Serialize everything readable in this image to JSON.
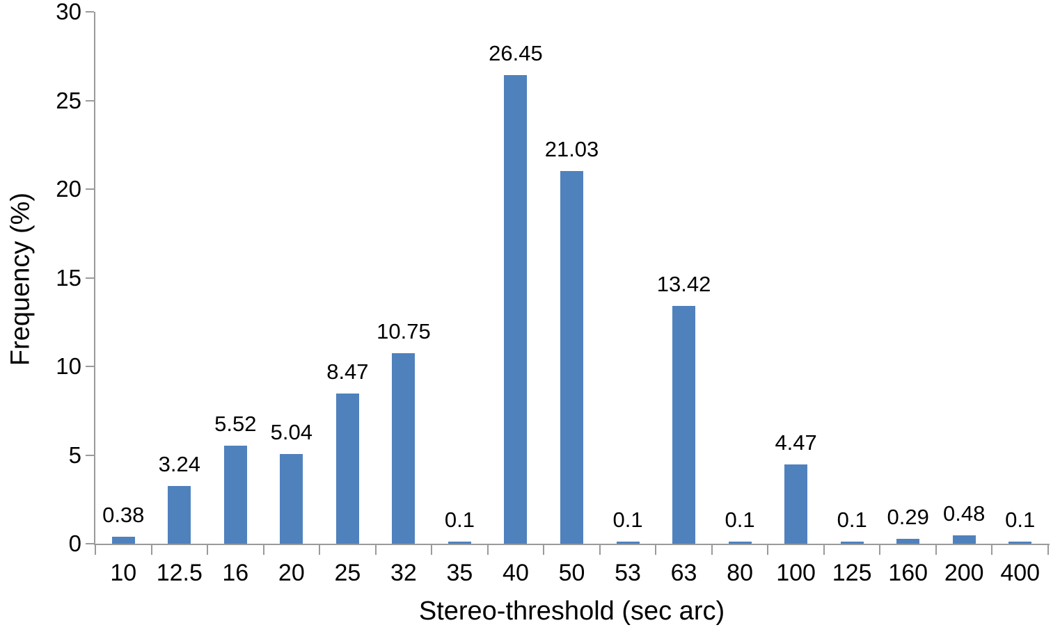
{
  "chart_data": {
    "type": "bar",
    "title": "",
    "xlabel": "Stereo-threshold (sec arc)",
    "ylabel": "Frequency (%)",
    "categories": [
      "10",
      "12.5",
      "16",
      "20",
      "25",
      "32",
      "35",
      "40",
      "50",
      "53",
      "63",
      "80",
      "100",
      "125",
      "160",
      "200",
      "400"
    ],
    "values": [
      0.38,
      3.24,
      5.52,
      5.04,
      8.47,
      10.75,
      0.1,
      26.45,
      21.03,
      0.1,
      13.42,
      0.1,
      4.47,
      0.1,
      0.29,
      0.48,
      0.1
    ],
    "value_labels": [
      "0.38",
      "3.24",
      "5.52",
      "5.04",
      "8.47",
      "10.75",
      "0.1",
      "26.45",
      "21.03",
      "0.1",
      "13.42",
      "0.1",
      "4.47",
      "0.1",
      "0.29",
      "0.48",
      "0.1"
    ],
    "ylim": [
      0,
      30
    ],
    "yticks": [
      0,
      5,
      10,
      15,
      20,
      25,
      30
    ],
    "grid": false,
    "legend": null,
    "bar_color": "#4f81bd",
    "axis_color": "#9a9a9a",
    "text_color": "#000000"
  }
}
